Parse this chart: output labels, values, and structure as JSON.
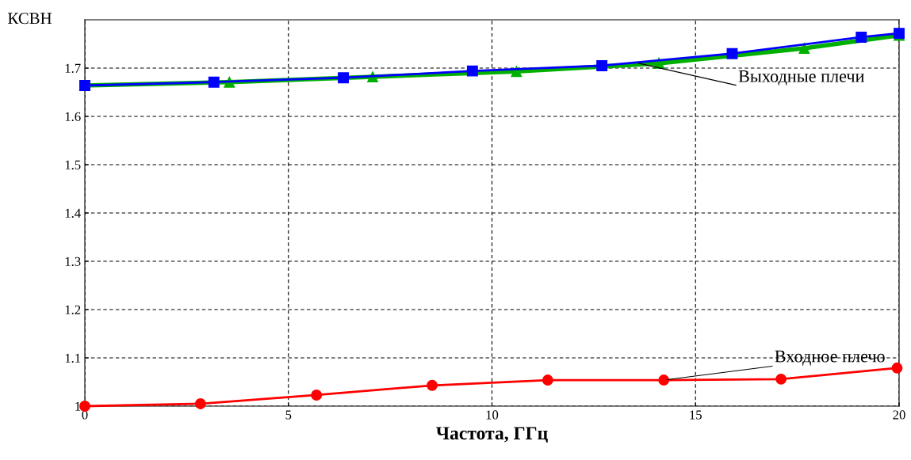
{
  "chart_data": {
    "type": "line",
    "xlabel": "Частота, ГГц",
    "ylabel": "КСВН",
    "xlim": [
      0,
      20
    ],
    "ylim": [
      1,
      1.8
    ],
    "xticks": [
      0,
      5,
      10,
      15,
      20
    ],
    "yticks": [
      1,
      1.1,
      1.2,
      1.3,
      1.4,
      1.5,
      1.6,
      1.7
    ],
    "grid": true,
    "legend": false,
    "line_style": "solid",
    "series": [
      {
        "color": "#00b000",
        "marker": "triangle",
        "x": [
          0,
          3.55,
          7.07,
          10.6,
          14.1,
          17.67,
          20
        ],
        "values": [
          1.664,
          1.671,
          1.682,
          1.693,
          1.71,
          1.741,
          1.768
        ]
      },
      {
        "color": "#0000ff",
        "marker": "square",
        "x": [
          0,
          3.17,
          6.35,
          9.52,
          12.7,
          15.9,
          19.07,
          20
        ],
        "values": [
          1.664,
          1.671,
          1.68,
          1.694,
          1.705,
          1.73,
          1.764,
          1.772
        ]
      },
      {
        "color": "#ff0000",
        "marker": "circle",
        "x": [
          0,
          2.84,
          5.69,
          8.53,
          11.37,
          14.22,
          17.1,
          19.95
        ],
        "values": [
          1,
          1.005,
          1.023,
          1.043,
          1.054,
          1.054,
          1.056,
          1.079
        ]
      }
    ],
    "annotations": [
      {
        "text": "Выходные плечи",
        "x": 13.6,
        "y": 1.71
      },
      {
        "text": "Входное плечо",
        "x": 14.3,
        "y": 1.055
      }
    ]
  }
}
